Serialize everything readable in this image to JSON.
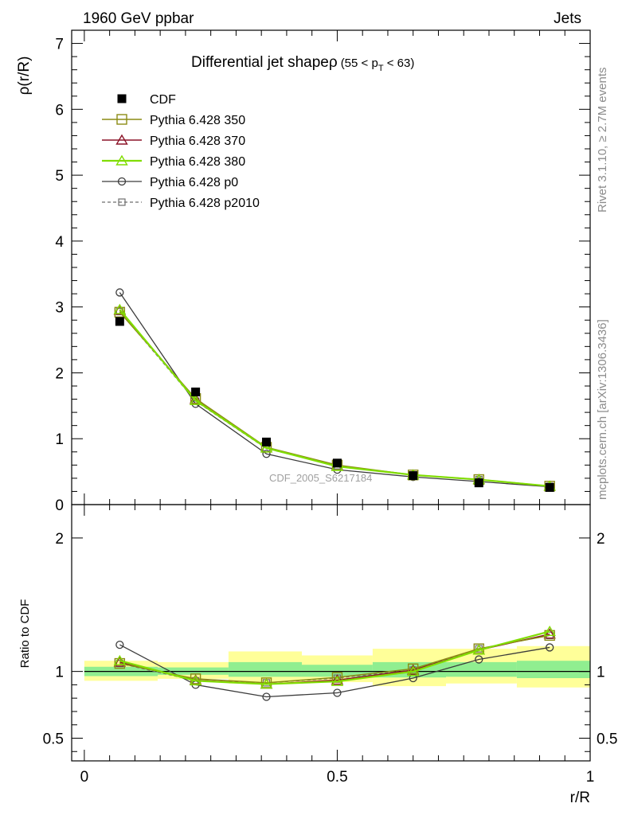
{
  "header": {
    "left": "1960 GeV ppbar",
    "right": "Jets"
  },
  "side_labels": {
    "top": "Rivet 3.1.10, ≥ 2.7M events",
    "bottom": "mcplots.cern.ch [arXiv:1306.3436]"
  },
  "watermark": "CDF_2005_S6217184",
  "colors": {
    "cdf": "#000000",
    "p350": "#8b8b14",
    "p370": "#8b1428",
    "p380": "#80dd00",
    "p0": "#3c3c3c",
    "p2010": "#6e6e6e",
    "band_yellow": "#ffff99",
    "band_green": "#90ee90"
  },
  "chart_data": [
    {
      "type": "scatter",
      "title": "Differential jet shapeρ",
      "title_suffix": "(55 < p",
      "title_sub": "T",
      "title_end": " < 63)",
      "ylabel": "ρ(r/R)",
      "xlim": [
        -0.025,
        1.0
      ],
      "ylim": [
        0,
        7.2
      ],
      "yticks": [
        0,
        1,
        2,
        3,
        4,
        5,
        6,
        7
      ],
      "x": [
        0.07,
        0.22,
        0.36,
        0.5,
        0.65,
        0.78,
        0.92
      ],
      "legend_position": "top-left",
      "series": [
        {
          "name": "CDF",
          "key": "cdf",
          "values": [
            2.78,
            1.71,
            0.95,
            0.63,
            0.44,
            0.33,
            0.26
          ]
        },
        {
          "name": "Pythia 6.428 350",
          "key": "p350",
          "values": [
            2.92,
            1.61,
            0.87,
            0.6,
            0.45,
            0.38,
            0.28
          ]
        },
        {
          "name": "Pythia 6.428 370",
          "key": "p370",
          "values": [
            2.95,
            1.6,
            0.86,
            0.59,
            0.45,
            0.38,
            0.28
          ]
        },
        {
          "name": "Pythia 6.428 380",
          "key": "p380",
          "values": [
            2.96,
            1.58,
            0.86,
            0.58,
            0.45,
            0.38,
            0.28
          ]
        },
        {
          "name": "Pythia 6.428 p0",
          "key": "p0",
          "values": [
            3.22,
            1.53,
            0.77,
            0.53,
            0.42,
            0.35,
            0.27
          ]
        },
        {
          "name": "Pythia 6.428 p2010",
          "key": "p2010",
          "values": [
            2.93,
            1.57,
            0.85,
            0.59,
            0.45,
            0.38,
            0.28
          ]
        }
      ]
    },
    {
      "type": "line",
      "ylabel": "Ratio to CDF",
      "xlabel": "r/R",
      "xlim": [
        -0.025,
        1.0
      ],
      "ylim": [
        0.33,
        2.25
      ],
      "yticks": [
        0.5,
        1,
        2
      ],
      "ytick_labels": [
        "0.5",
        "1",
        "2"
      ],
      "xticks": [
        0,
        0.5,
        1
      ],
      "xtick_labels": [
        "0",
        "0.5",
        "1"
      ],
      "x": [
        0.07,
        0.22,
        0.36,
        0.5,
        0.65,
        0.78,
        0.92
      ],
      "bands": [
        {
          "x0": 0.0,
          "x1": 0.145,
          "y_lo": 0.93,
          "y_hi": 1.08,
          "g_lo": 0.965,
          "g_hi": 1.035
        },
        {
          "x0": 0.145,
          "x1": 0.285,
          "y_lo": 0.945,
          "y_hi": 1.07,
          "g_lo": 0.975,
          "g_hi": 1.03
        },
        {
          "x0": 0.285,
          "x1": 0.43,
          "y_lo": 0.91,
          "y_hi": 1.15,
          "g_lo": 0.96,
          "g_hi": 1.07
        },
        {
          "x0": 0.43,
          "x1": 0.57,
          "y_lo": 0.92,
          "y_hi": 1.12,
          "g_lo": 0.96,
          "g_hi": 1.05
        },
        {
          "x0": 0.57,
          "x1": 0.715,
          "y_lo": 0.89,
          "y_hi": 1.17,
          "g_lo": 0.955,
          "g_hi": 1.07
        },
        {
          "x0": 0.715,
          "x1": 0.855,
          "y_lo": 0.91,
          "y_hi": 1.17,
          "g_lo": 0.96,
          "g_hi": 1.07
        },
        {
          "x0": 0.855,
          "x1": 1.0,
          "y_lo": 0.88,
          "y_hi": 1.19,
          "g_lo": 0.95,
          "g_hi": 1.08
        }
      ],
      "series": [
        {
          "key": "p350",
          "values": [
            1.06,
            0.945,
            0.915,
            0.955,
            1.02,
            1.17,
            1.27
          ]
        },
        {
          "key": "p370",
          "values": [
            1.07,
            0.935,
            0.905,
            0.935,
            1.01,
            1.16,
            1.28
          ]
        },
        {
          "key": "p380",
          "values": [
            1.08,
            0.93,
            0.905,
            0.925,
            1.0,
            1.16,
            1.3
          ]
        },
        {
          "key": "p0",
          "values": [
            1.2,
            0.9,
            0.81,
            0.84,
            0.95,
            1.09,
            1.18
          ]
        },
        {
          "key": "p2010",
          "values": [
            1.06,
            0.93,
            0.915,
            0.95,
            1.01,
            1.17,
            1.27
          ]
        }
      ]
    }
  ]
}
